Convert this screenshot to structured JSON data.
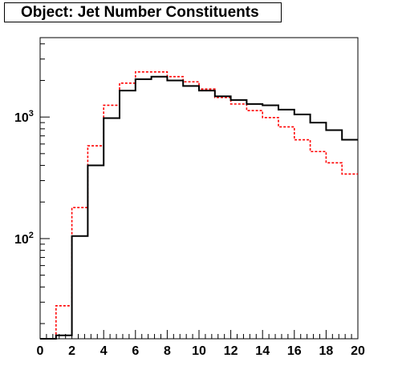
{
  "chart_data": {
    "type": "line",
    "title": "Object: Jet Number Constituents",
    "xlabel": "",
    "ylabel": "",
    "xlim": [
      0,
      20
    ],
    "ylim": [
      15,
      4500
    ],
    "ylog": true,
    "grid": false,
    "x_tick_labels": [
      "0",
      "2",
      "4",
      "6",
      "8",
      "10",
      "12",
      "14",
      "16",
      "18",
      "20"
    ],
    "y_tick_labels": [
      {
        "value": 100,
        "base": "10",
        "exp": "2"
      },
      {
        "value": 1000,
        "base": "10",
        "exp": "3"
      }
    ],
    "bin_edges": [
      0,
      1,
      2,
      3,
      4,
      5,
      6,
      7,
      8,
      9,
      10,
      11,
      12,
      13,
      14,
      15,
      16,
      17,
      18,
      19,
      20
    ],
    "series": [
      {
        "color": "#000000",
        "style": "solid",
        "values": [
          15,
          16,
          105,
          400,
          980,
          1650,
          2050,
          2150,
          2000,
          1800,
          1650,
          1480,
          1380,
          1280,
          1250,
          1150,
          1050,
          900,
          780,
          650
        ]
      },
      {
        "color": "#ff0000",
        "style": "dashed",
        "values": [
          15,
          28,
          180,
          580,
          1250,
          1900,
          2350,
          2350,
          2150,
          1950,
          1700,
          1450,
          1280,
          1130,
          990,
          830,
          650,
          520,
          420,
          340
        ]
      }
    ]
  }
}
